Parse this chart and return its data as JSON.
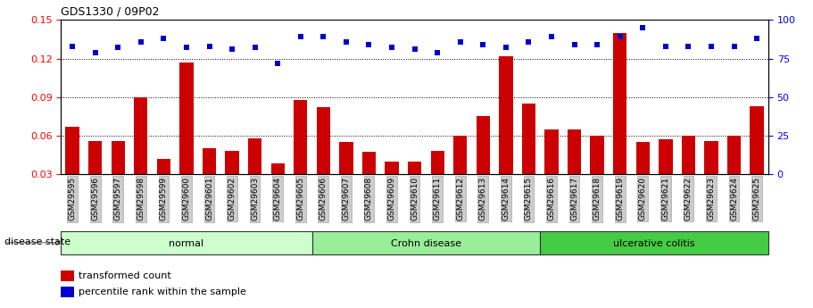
{
  "title": "GDS1330 / 09P02",
  "samples": [
    "GSM29595",
    "GSM29596",
    "GSM29597",
    "GSM29598",
    "GSM29599",
    "GSM29600",
    "GSM29601",
    "GSM29602",
    "GSM29603",
    "GSM29604",
    "GSM29605",
    "GSM29606",
    "GSM29607",
    "GSM29608",
    "GSM29609",
    "GSM29610",
    "GSM29611",
    "GSM29612",
    "GSM29613",
    "GSM29614",
    "GSM29615",
    "GSM29616",
    "GSM29617",
    "GSM29618",
    "GSM29619",
    "GSM29620",
    "GSM29621",
    "GSM29622",
    "GSM29623",
    "GSM29624",
    "GSM29625"
  ],
  "bar_values": [
    0.067,
    0.056,
    0.056,
    0.09,
    0.042,
    0.117,
    0.05,
    0.048,
    0.058,
    0.038,
    0.088,
    0.082,
    0.055,
    0.047,
    0.04,
    0.04,
    0.048,
    0.06,
    0.075,
    0.122,
    0.085,
    0.065,
    0.065,
    0.06,
    0.14,
    0.055,
    0.057,
    0.06,
    0.056,
    0.06,
    0.083
  ],
  "percentile_values": [
    83,
    79,
    82,
    86,
    88,
    82,
    83,
    81,
    82,
    72,
    89,
    89,
    86,
    84,
    82,
    81,
    79,
    86,
    84,
    82,
    86,
    89,
    84,
    84,
    89,
    95,
    83,
    83,
    83,
    83,
    88
  ],
  "bar_color": "#cc0000",
  "dot_color": "#0000cc",
  "ylim_left": [
    0.03,
    0.15
  ],
  "ylim_right": [
    0,
    100
  ],
  "yticks_left": [
    0.03,
    0.06,
    0.09,
    0.12,
    0.15
  ],
  "yticks_right": [
    0,
    25,
    50,
    75,
    100
  ],
  "grid_values": [
    0.06,
    0.09,
    0.12
  ],
  "group_colors": [
    "#ccffcc",
    "#99ee99",
    "#44cc44"
  ],
  "group_labels": [
    "normal",
    "Crohn disease",
    "ulcerative colitis"
  ],
  "group_starts": [
    0,
    11,
    21
  ],
  "group_ends": [
    11,
    21,
    31
  ],
  "disease_state_label": "disease state",
  "legend_bar_label": "transformed count",
  "legend_dot_label": "percentile rank within the sample",
  "bar_width": 0.6,
  "bg_color": "#ffffff"
}
